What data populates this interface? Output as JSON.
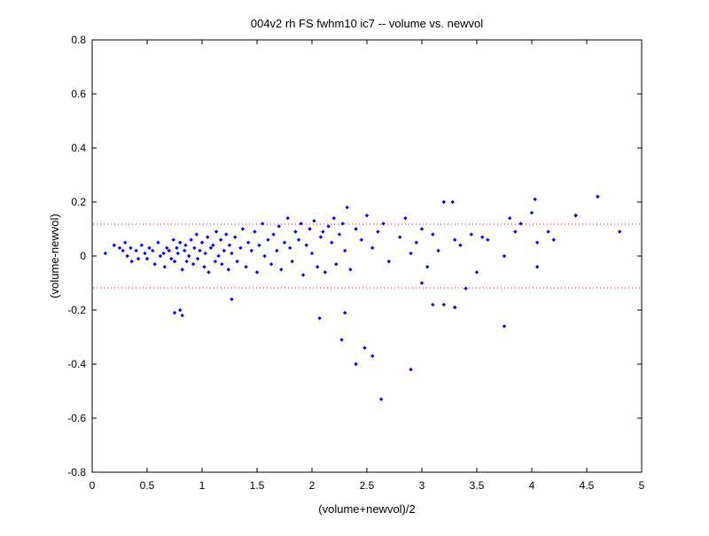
{
  "figure": {
    "background": "#ffffff"
  },
  "chart_data": {
    "type": "scatter",
    "title": "004v2 rh FS fwhm10 ic7 -- volume vs. newvol",
    "xlabel": "(volume+newvol)/2",
    "ylabel": "(volume-newvol)",
    "xlim": [
      0,
      5
    ],
    "ylim": [
      -0.8,
      0.8
    ],
    "xticks": [
      "0",
      "0.5",
      "1",
      "1.5",
      "2",
      "2.5",
      "3",
      "3.5",
      "4",
      "4.5",
      "5"
    ],
    "yticks": [
      "0.8",
      "0.6",
      "0.4",
      "0.2",
      "0",
      "-0.2",
      "-0.4",
      "-0.6",
      "-0.8"
    ],
    "grid": false,
    "marker_color": "#0000ff",
    "reference_line_color": "#ff0000",
    "reference_lines": [
      0.118,
      -0.118
    ],
    "x": [
      0.12,
      0.2,
      0.25,
      0.28,
      0.3,
      0.32,
      0.35,
      0.36,
      0.4,
      0.42,
      0.45,
      0.48,
      0.5,
      0.52,
      0.55,
      0.57,
      0.6,
      0.62,
      0.65,
      0.66,
      0.68,
      0.7,
      0.72,
      0.74,
      0.75,
      0.77,
      0.78,
      0.8,
      0.82,
      0.84,
      0.85,
      0.86,
      0.88,
      0.9,
      0.92,
      0.93,
      0.95,
      0.96,
      0.98,
      1.0,
      1.02,
      1.03,
      1.05,
      1.06,
      1.08,
      1.1,
      1.12,
      1.13,
      1.15,
      1.17,
      1.18,
      1.2,
      1.22,
      1.24,
      1.25,
      1.27,
      1.3,
      1.32,
      1.35,
      1.37,
      1.4,
      1.42,
      1.45,
      1.48,
      1.5,
      1.52,
      1.55,
      1.57,
      1.6,
      1.63,
      1.65,
      1.68,
      1.7,
      1.72,
      1.75,
      1.78,
      1.8,
      1.82,
      1.85,
      1.88,
      1.9,
      1.92,
      1.95,
      1.98,
      2.0,
      2.02,
      2.05,
      2.08,
      2.1,
      2.12,
      2.15,
      2.18,
      2.2,
      2.22,
      2.25,
      2.28,
      2.3,
      2.32,
      2.35,
      2.4,
      2.45,
      2.5,
      2.55,
      2.6,
      2.65,
      2.7,
      2.8,
      2.85,
      2.9,
      2.95,
      3.0,
      3.05,
      3.1,
      3.15,
      3.2,
      3.3,
      3.35,
      3.45,
      3.55,
      3.6,
      3.75,
      3.8,
      3.85,
      3.9,
      4.0,
      4.05,
      4.15,
      4.4,
      4.6,
      4.8,
      0.75,
      0.8,
      0.82,
      1.27,
      2.07,
      2.27,
      2.3,
      2.4,
      2.48,
      2.55,
      2.63,
      2.9,
      3.0,
      3.2,
      3.3,
      3.75,
      3.28,
      4.03,
      4.6,
      4.4,
      3.3,
      3.1,
      4.05,
      4.2,
      3.4,
      3.5
    ],
    "y": [
      0.01,
      0.04,
      0.03,
      0.02,
      0.05,
      0.0,
      0.03,
      -0.02,
      0.02,
      -0.01,
      0.04,
      0.01,
      -0.01,
      0.03,
      0.02,
      -0.03,
      0.05,
      0.0,
      0.01,
      -0.04,
      0.03,
      0.02,
      -0.01,
      0.06,
      -0.02,
      0.03,
      0.01,
      0.05,
      -0.05,
      0.02,
      0.04,
      -0.02,
      0.0,
      0.06,
      -0.03,
      0.03,
      0.08,
      -0.01,
      0.02,
      0.05,
      -0.04,
      0.01,
      0.07,
      -0.06,
      0.03,
      0.04,
      -0.02,
      0.09,
      0.0,
      0.06,
      -0.03,
      0.02,
      0.08,
      -0.05,
      0.04,
      0.01,
      0.07,
      -0.02,
      0.03,
      0.1,
      -0.04,
      0.05,
      0.02,
      0.09,
      -0.06,
      0.04,
      0.12,
      0.0,
      0.06,
      -0.03,
      0.08,
      0.02,
      0.11,
      -0.05,
      0.05,
      0.14,
      0.03,
      -0.02,
      0.09,
      0.06,
      0.12,
      -0.07,
      0.04,
      0.1,
      0.01,
      0.13,
      -0.04,
      0.07,
      0.09,
      -0.06,
      0.11,
      0.05,
      0.14,
      -0.03,
      0.08,
      0.12,
      0.02,
      0.18,
      -0.05,
      0.1,
      0.06,
      0.15,
      0.03,
      0.09,
      0.12,
      -0.02,
      0.07,
      0.14,
      0.01,
      0.05,
      0.1,
      -0.04,
      0.08,
      0.02,
      0.2,
      0.06,
      0.04,
      0.08,
      0.07,
      0.06,
      0.0,
      0.14,
      0.09,
      0.12,
      0.16,
      0.05,
      0.09,
      0.15,
      0.22,
      0.09,
      -0.21,
      -0.2,
      -0.22,
      -0.16,
      -0.23,
      -0.31,
      -0.21,
      -0.4,
      -0.34,
      -0.37,
      -0.53,
      -0.42,
      -0.1,
      -0.18,
      -0.19,
      -0.26,
      0.2,
      0.21,
      0.22,
      0.15,
      -0.19,
      -0.18,
      -0.04,
      0.06,
      -0.12,
      -0.06
    ]
  }
}
